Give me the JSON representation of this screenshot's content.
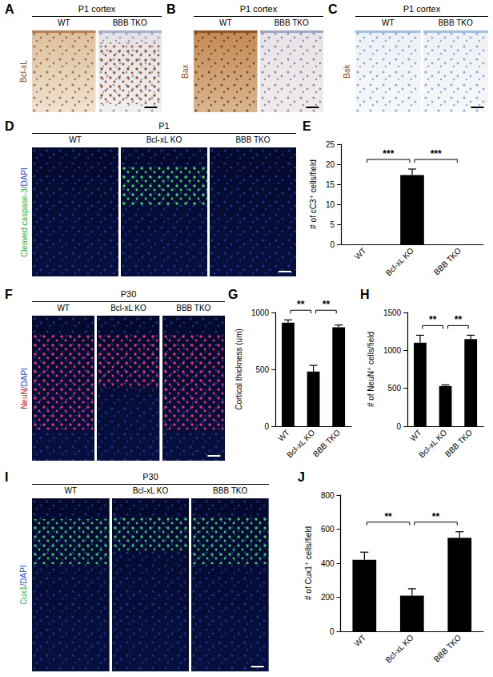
{
  "image_panels": [
    {
      "letter": "A",
      "header": "P1 cortex",
      "columns": [
        "WT",
        "BBB TKO"
      ],
      "stain": "Bcl-xL"
    },
    {
      "letter": "B",
      "header": "P1 cortex",
      "columns": [
        "WT",
        "BBB TKO"
      ],
      "stain": "Bax"
    },
    {
      "letter": "C",
      "header": "P1 cortex",
      "columns": [
        "WT",
        "BBB TKO"
      ],
      "stain": "Bak"
    },
    {
      "letter": "D",
      "header": "P1",
      "columns": [
        "WT",
        "Bcl-xL KO",
        "BBB TKO"
      ],
      "stain": "Cleaved caspase-3/DAPI"
    },
    {
      "letter": "F",
      "header": "P30",
      "columns": [
        "WT",
        "Bcl-xL KO",
        "BBB TKO"
      ],
      "stain": "NeuN/DAPI"
    },
    {
      "letter": "I",
      "header": "P30",
      "columns": [
        "WT",
        "Bcl-xL KO",
        "BBB TKO"
      ],
      "stain": "Cux1/DAPI"
    }
  ],
  "chart_data": [
    {
      "letter": "E",
      "type": "bar",
      "categories": [
        "WT",
        "Bcl-xL KO",
        "BBB TKO"
      ],
      "values": [
        0,
        17.3,
        0
      ],
      "errors": [
        0,
        1.5,
        0
      ],
      "color": "#000000",
      "ylabel": "# of cC3⁺ cells/field",
      "ylim": [
        0,
        25
      ],
      "yticks": [
        0,
        5,
        10,
        15,
        20,
        25
      ],
      "grid": false,
      "significance": [
        {
          "from": 0,
          "to": 1,
          "label": "***"
        },
        {
          "from": 1,
          "to": 2,
          "label": "***"
        }
      ]
    },
    {
      "letter": "G",
      "type": "bar",
      "categories": [
        "WT",
        "Bcl-xL KO",
        "BBB TKO"
      ],
      "values": [
        910,
        480,
        870
      ],
      "errors": [
        25,
        55,
        20
      ],
      "color": "#000000",
      "ylabel": "Cortical thickness (um)",
      "ylim": [
        0,
        1000
      ],
      "yticks": [
        0,
        500,
        1000
      ],
      "grid": false,
      "significance": [
        {
          "from": 0,
          "to": 1,
          "label": "**"
        },
        {
          "from": 1,
          "to": 2,
          "label": "**"
        }
      ]
    },
    {
      "letter": "H",
      "type": "bar",
      "categories": [
        "WT",
        "Bcl-xL KO",
        "BBB TKO"
      ],
      "values": [
        1100,
        530,
        1150
      ],
      "errors": [
        100,
        15,
        50
      ],
      "color": "#000000",
      "ylabel": "# of NeuN⁺ cells/field",
      "ylim": [
        0,
        1500
      ],
      "yticks": [
        0,
        500,
        1000,
        1500
      ],
      "grid": false,
      "significance": [
        {
          "from": 0,
          "to": 1,
          "label": "**"
        },
        {
          "from": 1,
          "to": 2,
          "label": "**"
        }
      ]
    },
    {
      "letter": "J",
      "type": "bar",
      "categories": [
        "WT",
        "Bcl-xL KO",
        "BBB TKO"
      ],
      "values": [
        420,
        210,
        550
      ],
      "errors": [
        45,
        40,
        35
      ],
      "color": "#000000",
      "ylabel": "# of Cux1⁺ cells/field",
      "ylim": [
        0,
        800
      ],
      "yticks": [
        0,
        200,
        400,
        600,
        800
      ],
      "grid": false,
      "significance": [
        {
          "from": 0,
          "to": 1,
          "label": "**"
        },
        {
          "from": 1,
          "to": 2,
          "label": "**"
        }
      ]
    }
  ]
}
